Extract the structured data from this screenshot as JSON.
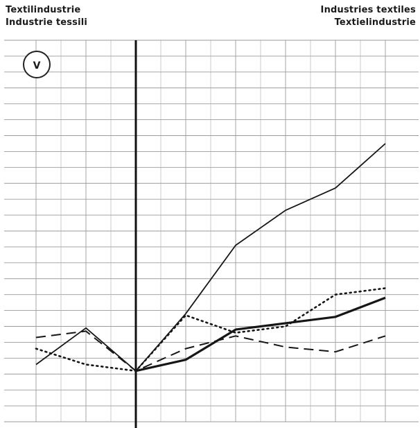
{
  "headers": {
    "left": [
      "Textilindustrie",
      "Industrie tessili"
    ],
    "right": [
      "Industries textiles",
      "Textielindustrie"
    ]
  },
  "badge": "V",
  "chart_data": {
    "type": "line",
    "title": "",
    "xlabel": "",
    "ylabel": "",
    "x": [
      0,
      1,
      2,
      3,
      4,
      5,
      6,
      7
    ],
    "ylim": [
      0,
      24
    ],
    "grid": true,
    "reference_line_x": 2,
    "series": [
      {
        "style": "solid-thin",
        "values": [
          3.6,
          5.9,
          3.2,
          6.8,
          11.1,
          13.3,
          14.7,
          17.5
        ]
      },
      {
        "style": "solid-thick",
        "values": [
          null,
          null,
          3.2,
          3.9,
          5.8,
          6.2,
          6.6,
          7.8
        ]
      },
      {
        "style": "dashed",
        "values": [
          5.3,
          5.7,
          3.2,
          4.6,
          5.4,
          4.7,
          4.4,
          5.4
        ]
      },
      {
        "style": "dotted",
        "values": [
          4.6,
          3.6,
          3.2,
          6.7,
          5.6,
          6.0,
          8.0,
          8.4
        ]
      }
    ]
  }
}
